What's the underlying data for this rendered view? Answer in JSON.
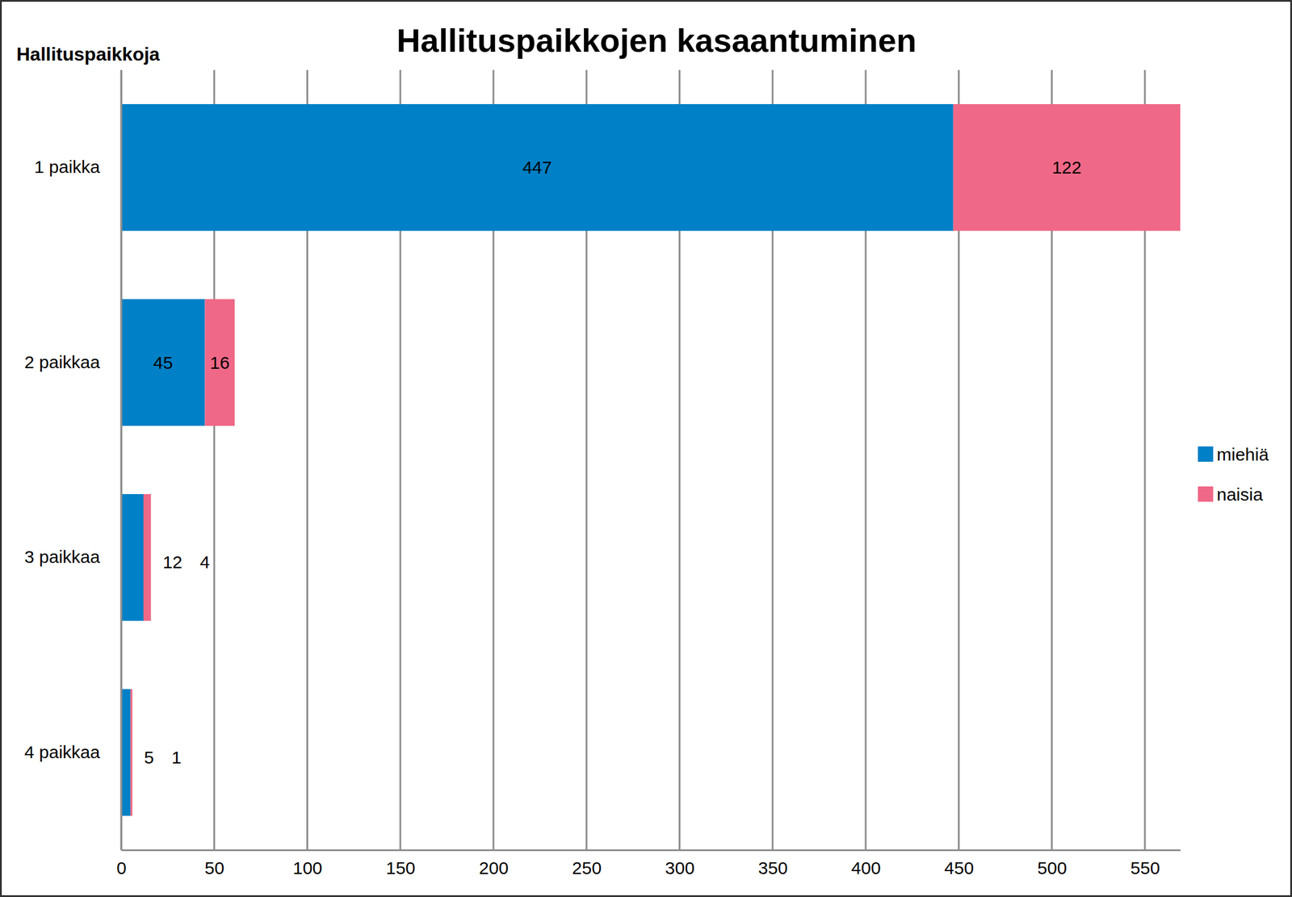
{
  "chart_data": {
    "type": "bar",
    "title": "Hallituspaikkojen kasaantuminen",
    "ylabel": "Hallituspaikkoja",
    "categories": [
      "1 paikka",
      "2 paikkaa",
      "3 paikkaa",
      "4 paikkaa"
    ],
    "series": [
      {
        "name": "miehiä",
        "color": "#0080C6",
        "values": [
          447,
          45,
          12,
          5
        ]
      },
      {
        "name": "naisia",
        "color": "#F06887",
        "values": [
          122,
          16,
          4,
          1
        ]
      }
    ],
    "xlim": [
      0,
      569
    ],
    "xticks": [
      0,
      50,
      100,
      150,
      200,
      250,
      300,
      350,
      400,
      450,
      500,
      550
    ],
    "orientation": "horizontal",
    "stacked": true,
    "data_labels": true,
    "grid": true,
    "legend": "right"
  }
}
